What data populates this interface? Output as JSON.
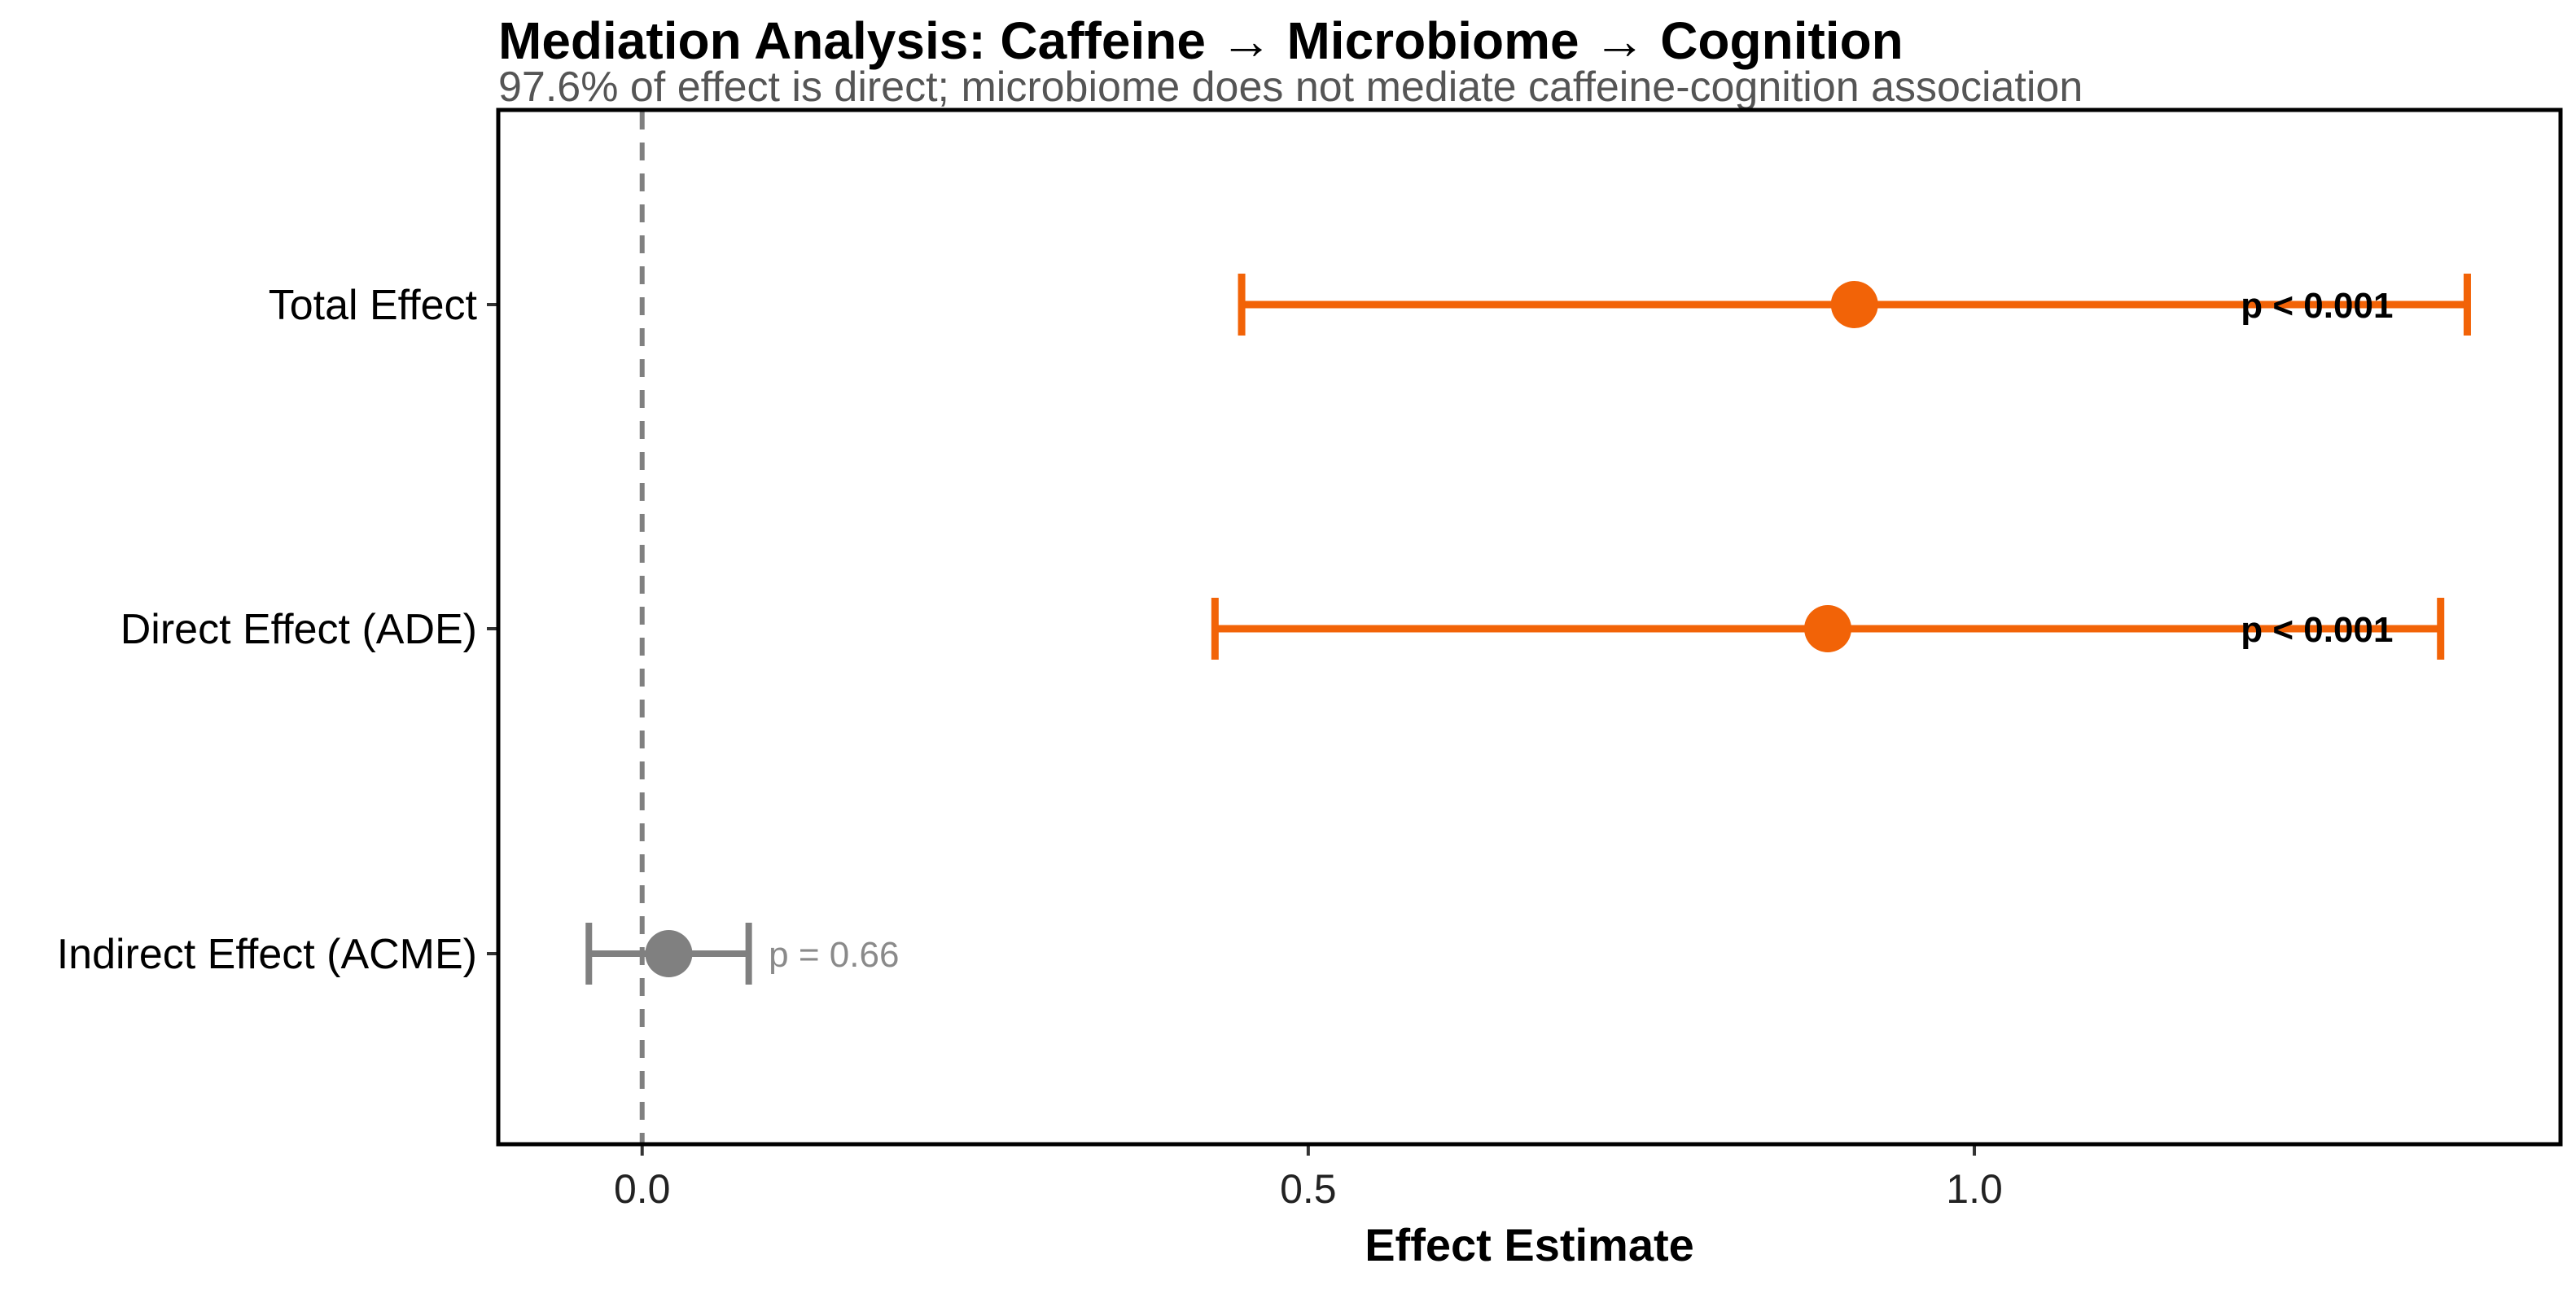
{
  "chart_data": {
    "type": "forest",
    "title": "Mediation Analysis: Caffeine → Microbiome → Cognition",
    "subtitle": "97.6% of effect is direct; microbiome does not mediate caffeine-cognition association",
    "xlabel": "Effect Estimate",
    "ylabel": "",
    "xlim": [
      -0.108,
      1.44
    ],
    "xticks": [
      0.0,
      0.5,
      1.0
    ],
    "xtick_labels": [
      "0.0",
      "0.5",
      "1.0"
    ],
    "reference_line": 0.0,
    "grid": false,
    "rows": [
      {
        "label": "Total Effect",
        "estimate": 0.91,
        "ci_low": 0.45,
        "ci_high": 1.37,
        "p_label": "p < 0.001",
        "p_value_position": 1.2,
        "significant": true,
        "color": "#F26307"
      },
      {
        "label": "Direct Effect (ADE)",
        "estimate": 0.89,
        "ci_low": 0.43,
        "ci_high": 1.35,
        "p_label": "p < 0.001",
        "p_value_position": 1.2,
        "significant": true,
        "color": "#F26307"
      },
      {
        "label": "Indirect Effect (ACME)",
        "estimate": 0.02,
        "ci_low": -0.04,
        "ci_high": 0.08,
        "p_label": "p = 0.66",
        "p_value_position": 0.095,
        "significant": false,
        "color": "#808080"
      }
    ]
  }
}
